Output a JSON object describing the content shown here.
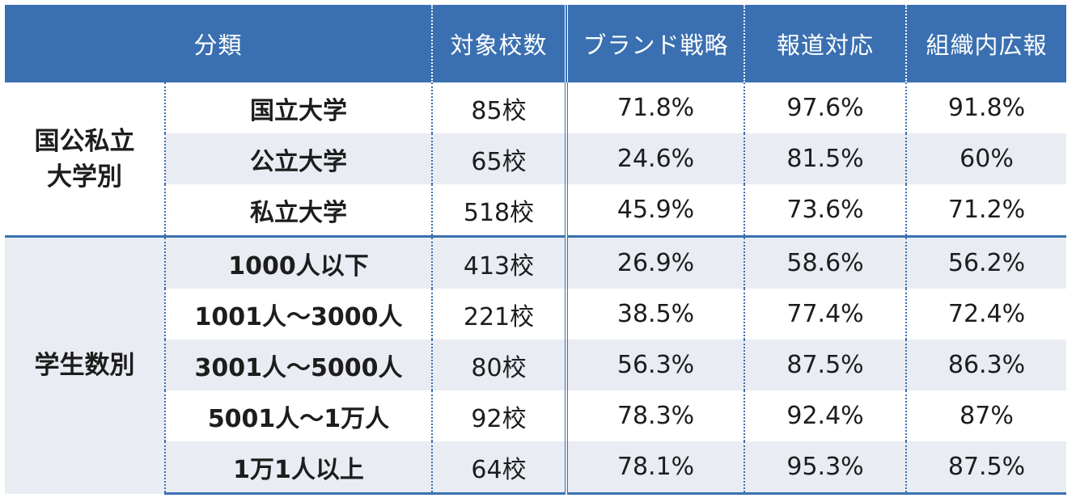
{
  "header": {
    "category": "分類",
    "count": "対象校数",
    "brand": "ブランド戦略",
    "press": "報道対応",
    "internal": "組織内広報"
  },
  "groups": [
    {
      "label_line1": "国公私立",
      "label_line2": "大学別",
      "rows": [
        {
          "name": "国立大学",
          "count": "85校",
          "brand": "71.8%",
          "press": "97.6%",
          "internal": "91.8%"
        },
        {
          "name": "公立大学",
          "count": "65校",
          "brand": "24.6%",
          "press": "81.5%",
          "internal": "60%"
        },
        {
          "name": "私立大学",
          "count": "518校",
          "brand": "45.9%",
          "press": "73.6%",
          "internal": "71.2%"
        }
      ]
    },
    {
      "label_line1": "学生数別",
      "rows": [
        {
          "name": "1000人以下",
          "count": "413校",
          "brand": "26.9%",
          "press": "58.6%",
          "internal": "56.2%"
        },
        {
          "name": "1001人～3000人",
          "count": "221校",
          "brand": "38.5%",
          "press": "77.4%",
          "internal": "72.4%"
        },
        {
          "name": "3001人～5000人",
          "count": "80校",
          "brand": "56.3%",
          "press": "87.5%",
          "internal": "86.3%"
        },
        {
          "name": "5001人～1万人",
          "count": "92校",
          "brand": "78.3%",
          "press": "92.4%",
          "internal": "87%"
        },
        {
          "name": "1万1人以上",
          "count": "64校",
          "brand": "78.1%",
          "press": "95.3%",
          "internal": "87.5%"
        }
      ]
    }
  ],
  "colors": {
    "header_bg": "#3a70b1",
    "stripe_bg": "#e9ecf3",
    "rule": "#3a70b1"
  }
}
